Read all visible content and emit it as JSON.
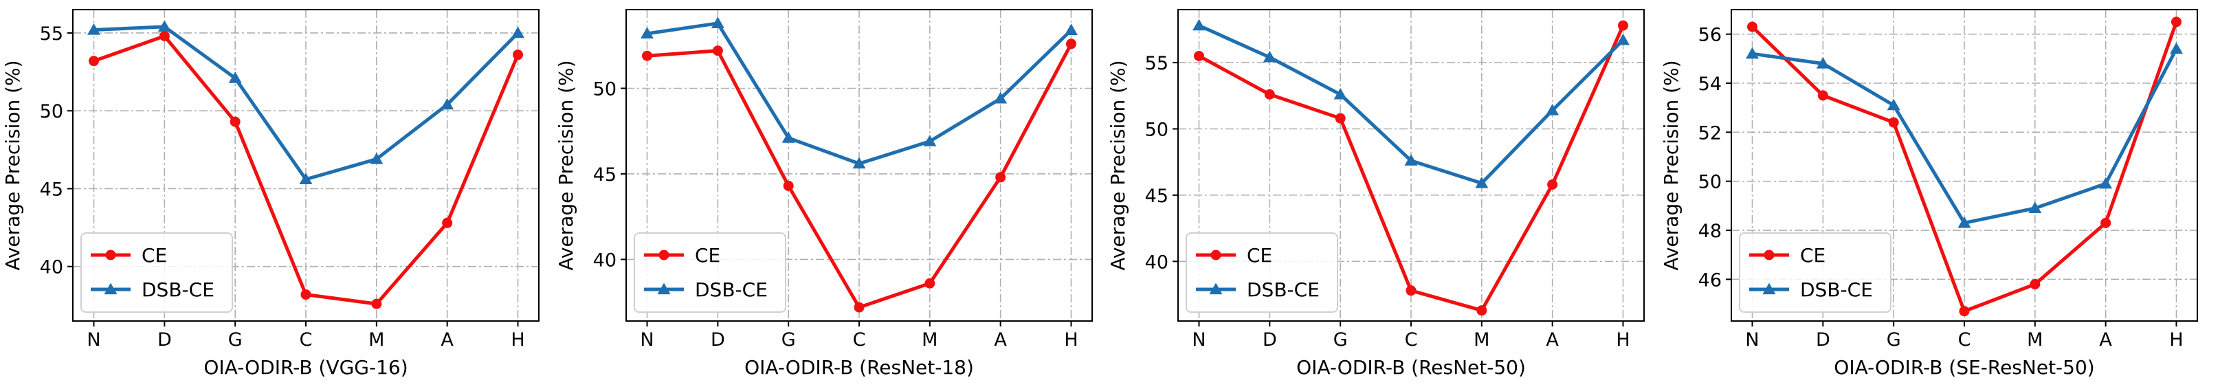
{
  "colors": {
    "ce": "#f20f0f",
    "dsb_ce": "#1f6fb0",
    "grid": "#b0b0b0",
    "axes": "#000000"
  },
  "legend": {
    "placement": "lower-left",
    "entries": [
      {
        "label": "CE",
        "marker": "circle",
        "color_key": "ce"
      },
      {
        "label": "DSB-CE",
        "marker": "triangle",
        "color_key": "dsb_ce"
      }
    ]
  },
  "chart_data": [
    {
      "type": "line",
      "xlabel": "OIA-ODIR-B  (VGG-16)",
      "ylabel": "Average Precision (%)",
      "categories": [
        "N",
        "D",
        "G",
        "C",
        "M",
        "A",
        "H"
      ],
      "ylim": [
        36.5,
        56.5
      ],
      "yticks": [
        40,
        45,
        50,
        55
      ],
      "grid": true,
      "series": [
        {
          "name": "CE",
          "values": [
            53.2,
            54.8,
            49.3,
            38.2,
            37.6,
            42.8,
            53.6
          ]
        },
        {
          "name": "DSB-CE",
          "values": [
            55.2,
            55.4,
            52.1,
            45.6,
            46.9,
            50.4,
            55.0
          ]
        }
      ]
    },
    {
      "type": "line",
      "xlabel": "OIA-ODIR-B  (ResNet-18)",
      "ylabel": "Average Precision (%)",
      "categories": [
        "N",
        "D",
        "G",
        "C",
        "M",
        "A",
        "H"
      ],
      "ylim": [
        36.4,
        54.6
      ],
      "yticks": [
        40,
        45,
        50
      ],
      "grid": true,
      "series": [
        {
          "name": "CE",
          "values": [
            51.9,
            52.2,
            44.3,
            37.2,
            38.6,
            44.8,
            52.6
          ]
        },
        {
          "name": "DSB-CE",
          "values": [
            53.2,
            53.8,
            47.1,
            45.6,
            46.9,
            49.4,
            53.4
          ]
        }
      ]
    },
    {
      "type": "line",
      "xlabel": "OIA-ODIR-B  (ResNet-50)",
      "ylabel": "Average Precision (%)",
      "categories": [
        "N",
        "D",
        "G",
        "C",
        "M",
        "A",
        "H"
      ],
      "ylim": [
        35.5,
        59.0
      ],
      "yticks": [
        40,
        45,
        50,
        55
      ],
      "grid": true,
      "series": [
        {
          "name": "CE",
          "values": [
            55.5,
            52.6,
            50.8,
            37.8,
            36.3,
            45.8,
            57.8
          ]
        },
        {
          "name": "DSB-CE",
          "values": [
            57.8,
            55.4,
            52.6,
            47.6,
            45.9,
            51.4,
            56.7
          ]
        }
      ]
    },
    {
      "type": "line",
      "xlabel": "OIA-ODIR-B (SE-ResNet-50)",
      "ylabel": "Average Precision (%)",
      "categories": [
        "N",
        "D",
        "G",
        "C",
        "M",
        "A",
        "H"
      ],
      "ylim": [
        44.3,
        57.0
      ],
      "yticks": [
        46,
        48,
        50,
        52,
        54,
        56
      ],
      "grid": true,
      "series": [
        {
          "name": "CE",
          "values": [
            56.3,
            53.5,
            52.4,
            44.7,
            45.8,
            48.3,
            56.5
          ]
        },
        {
          "name": "DSB-CE",
          "values": [
            55.2,
            54.8,
            53.1,
            48.3,
            48.9,
            49.9,
            55.4
          ]
        }
      ]
    }
  ]
}
